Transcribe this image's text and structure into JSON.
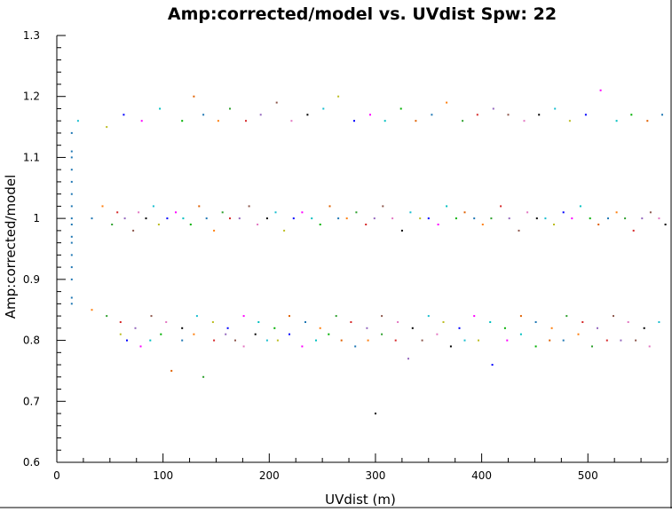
{
  "chart_data": {
    "type": "scatter",
    "title": "Amp:corrected/model vs. UVdist Spw: 22",
    "xlabel": "UVdist (m)",
    "ylabel": "Amp:corrected/model",
    "xlim": [
      0,
      575
    ],
    "ylim": [
      0.6,
      1.3
    ],
    "x_ticks": [
      0,
      100,
      200,
      300,
      400,
      500
    ],
    "x_tick_labels": [
      "0",
      "100",
      "200",
      "300",
      "400",
      "500"
    ],
    "y_ticks": [
      0.6,
      0.7,
      0.8,
      0.9,
      1.0,
      1.1,
      1.2,
      1.3
    ],
    "y_tick_labels": [
      "0.6",
      "0.7",
      "0.8",
      "0.9",
      "1",
      "1.1",
      "1.2",
      "1.3"
    ],
    "grid": false,
    "legend": "none",
    "colors": [
      "#1f77b4",
      "#ff7f0e",
      "#2ca02c",
      "#d62728",
      "#9467bd",
      "#8c564b",
      "#e377c2",
      "#000000",
      "#17becf",
      "#bcbd22",
      "#0000ff",
      "#ff00ff",
      "#00c0c0",
      "#00b000",
      "#e06000"
    ],
    "series": [
      {
        "x": [
          14,
          14,
          14,
          14,
          14,
          14,
          14,
          14,
          14,
          14,
          14,
          14,
          14,
          14,
          14,
          14
        ],
        "y": [
          1.14,
          1.11,
          1.1,
          1.08,
          1.06,
          1.04,
          1.02,
          1.0,
          0.99,
          0.97,
          0.96,
          0.94,
          0.92,
          0.9,
          0.87,
          0.86
        ]
      },
      {
        "x": [
          33,
          43,
          52,
          57,
          64,
          72,
          77,
          84,
          91,
          96,
          104,
          112,
          119,
          126,
          134,
          141,
          148,
          156,
          163,
          172,
          181,
          189,
          198,
          206,
          214,
          223,
          231,
          240,
          248,
          257,
          265,
          273,
          282,
          291,
          299,
          307,
          316,
          325,
          333,
          342,
          350,
          359,
          367,
          376,
          384,
          393,
          401,
          409,
          418,
          426,
          435,
          443,
          452,
          460,
          468,
          477,
          485,
          493,
          502,
          510,
          519,
          527,
          535,
          543,
          551,
          559,
          567,
          573
        ],
        "y": [
          1.0,
          1.02,
          0.99,
          1.01,
          1.0,
          0.98,
          1.01,
          1.0,
          1.02,
          0.99,
          1.0,
          1.01,
          1.0,
          0.99,
          1.02,
          1.0,
          0.98,
          1.01,
          1.0,
          1.0,
          1.02,
          0.99,
          1.0,
          1.01,
          0.98,
          1.0,
          1.01,
          1.0,
          0.99,
          1.02,
          1.0,
          1.0,
          1.01,
          0.99,
          1.0,
          1.02,
          1.0,
          0.98,
          1.01,
          1.0,
          1.0,
          0.99,
          1.02,
          1.0,
          1.01,
          1.0,
          0.99,
          1.0,
          1.02,
          1.0,
          0.98,
          1.01,
          1.0,
          1.0,
          0.99,
          1.01,
          1.0,
          1.02,
          1.0,
          0.99,
          1.0,
          1.01,
          1.0,
          0.98,
          1.0,
          1.01,
          1.0,
          0.99
        ]
      },
      {
        "x": [
          20,
          47,
          63,
          80,
          97,
          118,
          129,
          138,
          152,
          163,
          178,
          192,
          207,
          221,
          236,
          251,
          265,
          280,
          295,
          309,
          324,
          338,
          353,
          367,
          382,
          396,
          411,
          425,
          440,
          454,
          469,
          483,
          498,
          512,
          527,
          541,
          556,
          570
        ],
        "y": [
          1.16,
          1.15,
          1.17,
          1.16,
          1.18,
          1.16,
          1.2,
          1.17,
          1.16,
          1.18,
          1.16,
          1.17,
          1.19,
          1.16,
          1.17,
          1.18,
          1.2,
          1.16,
          1.17,
          1.16,
          1.18,
          1.16,
          1.17,
          1.19,
          1.16,
          1.17,
          1.18,
          1.17,
          1.16,
          1.17,
          1.18,
          1.16,
          1.17,
          1.21,
          1.16,
          1.17,
          1.16,
          1.17
        ]
      },
      {
        "x": [
          33,
          47,
          60,
          74,
          89,
          103,
          118,
          132,
          147,
          161,
          176,
          190,
          205,
          219,
          234,
          248,
          263,
          277,
          292,
          306,
          321,
          335,
          350,
          364,
          379,
          393,
          408,
          422,
          437,
          451,
          466,
          480,
          495,
          509,
          524,
          538,
          553,
          567
        ],
        "y": [
          0.85,
          0.84,
          0.83,
          0.82,
          0.84,
          0.83,
          0.82,
          0.84,
          0.83,
          0.82,
          0.84,
          0.83,
          0.82,
          0.84,
          0.83,
          0.82,
          0.84,
          0.83,
          0.82,
          0.84,
          0.83,
          0.82,
          0.84,
          0.83,
          0.82,
          0.84,
          0.83,
          0.82,
          0.84,
          0.83,
          0.82,
          0.84,
          0.83,
          0.82,
          0.84,
          0.83,
          0.82,
          0.83
        ]
      },
      {
        "x": [
          60,
          66,
          79,
          88,
          98,
          108,
          118,
          129,
          138,
          148,
          159,
          168,
          176,
          187,
          198,
          208,
          219,
          231,
          244,
          256,
          268,
          281,
          293,
          306,
          319,
          331,
          344,
          358,
          371,
          384,
          397,
          410,
          424,
          437,
          451,
          464,
          477,
          491,
          504,
          518,
          531,
          545,
          558
        ],
        "y": [
          0.81,
          0.8,
          0.79,
          0.8,
          0.81,
          0.75,
          0.8,
          0.81,
          0.74,
          0.8,
          0.81,
          0.8,
          0.79,
          0.81,
          0.8,
          0.8,
          0.81,
          0.79,
          0.8,
          0.81,
          0.8,
          0.79,
          0.8,
          0.81,
          0.8,
          0.77,
          0.8,
          0.81,
          0.79,
          0.8,
          0.8,
          0.76,
          0.8,
          0.81,
          0.79,
          0.8,
          0.8,
          0.81,
          0.79,
          0.8,
          0.8,
          0.8,
          0.79
        ]
      },
      {
        "x": [
          300
        ],
        "y": [
          0.68
        ]
      }
    ]
  }
}
